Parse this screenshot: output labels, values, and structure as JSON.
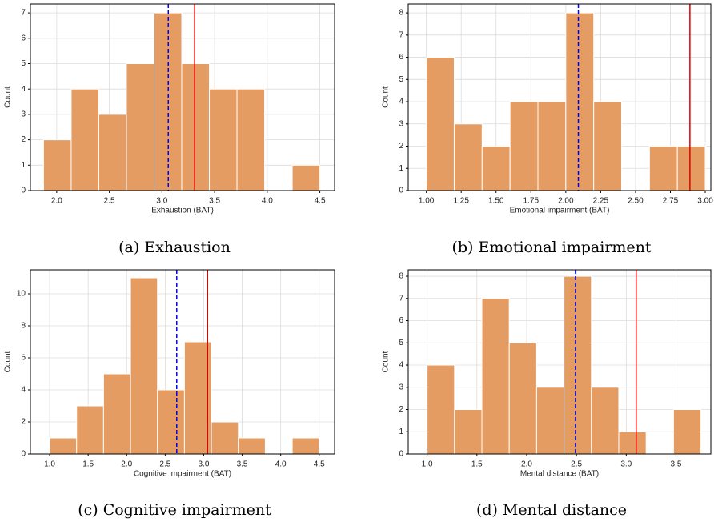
{
  "chart_data": [
    {
      "type": "histogram",
      "xlabel": "Exhaustion (BAT)",
      "ylabel": "Count",
      "caption": "(a) Exhaustion",
      "bins": [
        1.875,
        2.1375,
        2.4,
        2.6625,
        2.925,
        3.1875,
        3.45,
        3.7125,
        3.975,
        4.2375,
        4.5
      ],
      "values": [
        2,
        4,
        3,
        5,
        7,
        5,
        4,
        4,
        0,
        1
      ],
      "color": "#e59c63",
      "xlim": [
        1.75,
        4.64
      ],
      "ylim": [
        0,
        7.35
      ],
      "xticks": [
        {
          "value": 2,
          "label": "2.0"
        },
        2.5,
        {
          "value": 3,
          "label": "3.0"
        },
        3.5,
        {
          "value": 4,
          "label": "4.0"
        },
        4.5
      ],
      "yticks": [
        0,
        1,
        2,
        3,
        4,
        5,
        6,
        7
      ],
      "grid": true,
      "vlines": [
        {
          "x": 3.06,
          "color": "#0000ff",
          "style": "dashed"
        },
        {
          "x": 3.31,
          "color": "#e00000",
          "style": "solid"
        }
      ]
    },
    {
      "type": "histogram",
      "xlabel": "Emotional impairment (BAT)",
      "ylabel": "Count",
      "caption": "(b) Emotional impairment",
      "bins": [
        1.0,
        1.2,
        1.4,
        1.6,
        1.8,
        2.0,
        2.2,
        2.4,
        2.6,
        2.8,
        3.0
      ],
      "values": [
        6,
        3,
        2,
        4,
        4,
        8,
        4,
        0,
        2,
        2
      ],
      "color": "#e59c63",
      "xlim": [
        0.87,
        3.04
      ],
      "ylim": [
        0,
        8.4
      ],
      "xticks": [
        {
          "value": 1,
          "label": "1.00"
        },
        {
          "value": 1.25,
          "label": "1.25"
        },
        {
          "value": 1.5,
          "label": "1.50"
        },
        {
          "value": 1.75,
          "label": "1.75"
        },
        {
          "value": 2,
          "label": "2.00"
        },
        {
          "value": 2.25,
          "label": "2.25"
        },
        {
          "value": 2.5,
          "label": "2.50"
        },
        {
          "value": 2.75,
          "label": "2.75"
        },
        {
          "value": 3,
          "label": "3.00"
        }
      ],
      "yticks": [
        0,
        1,
        2,
        3,
        4,
        5,
        6,
        7,
        8
      ],
      "grid": true,
      "vlines": [
        {
          "x": 2.09,
          "color": "#0000ff",
          "style": "dashed"
        },
        {
          "x": 2.89,
          "color": "#e00000",
          "style": "solid"
        }
      ]
    },
    {
      "type": "histogram",
      "xlabel": "Cognitive impairment (BAT)",
      "ylabel": "Count",
      "caption": "(c) Cognitive impairment",
      "bins": [
        1.0,
        1.35,
        1.7,
        2.05,
        2.4,
        2.75,
        3.1,
        3.45,
        3.8,
        4.15,
        4.5
      ],
      "values": [
        1,
        3,
        5,
        11,
        4,
        7,
        2,
        1,
        0,
        1
      ],
      "color": "#e59c63",
      "xlim": [
        0.75,
        4.7
      ],
      "ylim": [
        0,
        11.5
      ],
      "xticks": [
        {
          "value": 1,
          "label": "1.0"
        },
        1.5,
        {
          "value": 2,
          "label": "2.0"
        },
        2.5,
        {
          "value": 3,
          "label": "3.0"
        },
        3.5,
        {
          "value": 4,
          "label": "4.0"
        },
        4.5
      ],
      "yticks": [
        0,
        2,
        4,
        6,
        8,
        10
      ],
      "grid": true,
      "vlines": [
        {
          "x": 2.65,
          "color": "#0000ff",
          "style": "dashed"
        },
        {
          "x": 3.05,
          "color": "#e00000",
          "style": "solid"
        }
      ]
    },
    {
      "type": "histogram",
      "xlabel": "Mental distance (BAT)",
      "ylabel": "Count",
      "caption": "(d) Mental distance",
      "bins": [
        1.0,
        1.275,
        1.55,
        1.825,
        2.1,
        2.375,
        2.65,
        2.925,
        3.2,
        3.475,
        3.75
      ],
      "values": [
        4,
        2,
        7,
        5,
        3,
        8,
        3,
        1,
        0,
        2
      ],
      "color": "#e59c63",
      "xlim": [
        0.81,
        3.85
      ],
      "ylim": [
        0,
        8.29
      ],
      "xticks": [
        {
          "value": 1,
          "label": "1.0"
        },
        1.5,
        {
          "value": 2,
          "label": "2.0"
        },
        2.5,
        {
          "value": 3,
          "label": "3.0"
        },
        3.5
      ],
      "yticks": [
        0,
        1,
        2,
        3,
        4,
        5,
        6,
        7,
        8
      ],
      "grid": true,
      "vlines": [
        {
          "x": 2.49,
          "color": "#0000ff",
          "style": "dashed"
        },
        {
          "x": 3.1,
          "color": "#e00000",
          "style": "solid"
        }
      ]
    }
  ]
}
